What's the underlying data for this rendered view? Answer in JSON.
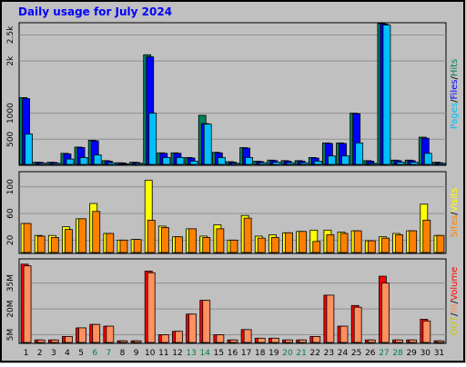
{
  "title": "Daily usage for July 2024",
  "categories": [
    "1",
    "2",
    "3",
    "4",
    "5",
    "6",
    "7",
    "8",
    "9",
    "10",
    "11",
    "12",
    "13",
    "14",
    "15",
    "16",
    "17",
    "18",
    "19",
    "20",
    "21",
    "22",
    "23",
    "24",
    "25",
    "26",
    "27",
    "28",
    "29",
    "30",
    "31"
  ],
  "weekend_categories": [
    "6",
    "7",
    "13",
    "14",
    "20",
    "21",
    "27",
    "28"
  ],
  "weekend_color": "#008040",
  "chart_data": [
    {
      "type": "bar",
      "legend_separator": "/",
      "ylim": [
        0,
        2700
      ],
      "yticks": [
        500,
        1000,
        {
          "value": 2000,
          "label": "2k"
        },
        {
          "value": 2500,
          "label": "2.5k"
        }
      ],
      "grid": true,
      "series": [
        {
          "name": "Hits",
          "color": "#00805c",
          "values": [
            1300,
            60,
            60,
            230,
            350,
            480,
            90,
            50,
            60,
            2120,
            240,
            240,
            150,
            960,
            250,
            70,
            340,
            80,
            100,
            90,
            90,
            150,
            430,
            430,
            1000,
            90,
            2720,
            100,
            100,
            540,
            60
          ]
        },
        {
          "name": "Files",
          "color": "#0000ff",
          "values": [
            1280,
            55,
            55,
            220,
            340,
            470,
            80,
            45,
            55,
            2080,
            230,
            230,
            140,
            800,
            240,
            60,
            330,
            70,
            90,
            80,
            80,
            140,
            420,
            420,
            990,
            80,
            2710,
            90,
            90,
            520,
            50
          ]
        },
        {
          "name": "Pages",
          "color": "#00c0ff",
          "values": [
            600,
            40,
            40,
            120,
            150,
            200,
            50,
            30,
            40,
            1000,
            150,
            150,
            80,
            790,
            150,
            40,
            150,
            50,
            60,
            50,
            50,
            80,
            180,
            180,
            430,
            40,
            2690,
            60,
            60,
            230,
            40
          ]
        }
      ]
    },
    {
      "type": "bar",
      "legend_separator": "/",
      "ylim": [
        0,
        120
      ],
      "yticks": [
        20,
        60,
        100
      ],
      "grid": true,
      "series": [
        {
          "name": "Visits",
          "color": "#ffff00",
          "values": [
            45,
            27,
            27,
            40,
            52,
            75,
            30,
            20,
            21,
            110,
            41,
            25,
            37,
            26,
            43,
            20,
            57,
            26,
            28,
            31,
            33,
            35,
            35,
            32,
            34,
            19,
            25,
            30,
            34,
            74,
            27
          ]
        },
        {
          "name": "Sites",
          "color": "#ff8000",
          "values": [
            45,
            26,
            24,
            36,
            52,
            63,
            30,
            20,
            21,
            50,
            39,
            25,
            37,
            24,
            37,
            20,
            53,
            23,
            24,
            31,
            33,
            18,
            28,
            30,
            34,
            19,
            23,
            28,
            34,
            50,
            27
          ]
        }
      ]
    },
    {
      "type": "bar",
      "legend_separator": "/",
      "ylim": [
        0,
        48
      ],
      "yticks": [
        {
          "value": 5,
          "label": "5M"
        },
        {
          "value": 20,
          "label": "20M"
        },
        {
          "value": 35,
          "label": "35M"
        }
      ],
      "grid": true,
      "series": [
        {
          "name": "Volume",
          "color": "#ff0000",
          "values": [
            46,
            2,
            2,
            4,
            9,
            11,
            10,
            1.5,
            1.5,
            42,
            5,
            7,
            17,
            25,
            5,
            2,
            8,
            3,
            3,
            2,
            2,
            4,
            28,
            10,
            22,
            2,
            39,
            2,
            2,
            14,
            1.5
          ]
        },
        {
          "name": "IN",
          "color": "#ff9060",
          "values": [
            45,
            2,
            2,
            4,
            9,
            11,
            10,
            1.5,
            1.5,
            41,
            5,
            7,
            17,
            25,
            5,
            2,
            8,
            3,
            3,
            2,
            2,
            4,
            28,
            10,
            21,
            2,
            35,
            2,
            2,
            13,
            1.5
          ]
        }
      ],
      "legend_extra": [
        {
          "name": "OUT",
          "color": "#c8c800"
        }
      ]
    }
  ]
}
